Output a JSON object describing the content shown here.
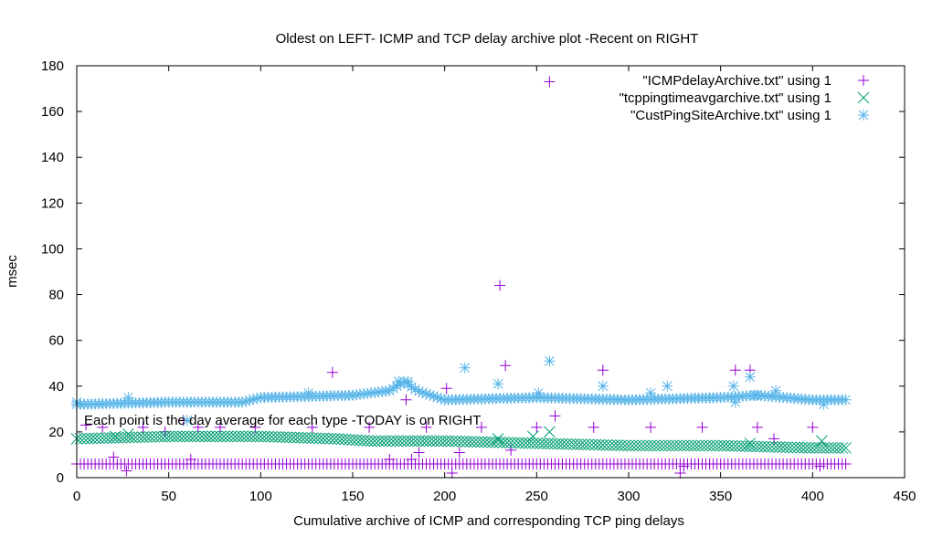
{
  "chart_data": {
    "type": "scatter",
    "title": "Oldest on LEFT- ICMP and TCP delay archive plot -Recent on RIGHT",
    "xlabel": "Cumulative archive of ICMP and corresponding TCP ping delays",
    "ylabel": "msec",
    "xlim": [
      0,
      450
    ],
    "ylim": [
      0,
      180
    ],
    "xticks": [
      0,
      50,
      100,
      150,
      200,
      250,
      300,
      350,
      400,
      450
    ],
    "yticks": [
      0,
      20,
      40,
      60,
      80,
      100,
      120,
      140,
      160,
      180
    ],
    "grid": false,
    "legend_position": "top-right",
    "annotation": "Each point is the day average for each type -TODAY is on RIGHT",
    "series": [
      {
        "name": "\"ICMPdelayArchive.txt\" using 1",
        "color": "#9400d3",
        "marker": "plus",
        "baseline": [
          [
            0,
            6
          ],
          [
            60,
            6
          ],
          [
            120,
            6
          ],
          [
            180,
            6
          ],
          [
            240,
            6
          ],
          [
            300,
            6
          ],
          [
            360,
            6
          ],
          [
            419,
            6
          ]
        ],
        "points": [
          [
            5,
            23
          ],
          [
            14,
            22
          ],
          [
            20,
            9
          ],
          [
            27,
            3
          ],
          [
            36,
            22
          ],
          [
            48,
            20
          ],
          [
            58,
            25
          ],
          [
            62,
            8
          ],
          [
            66,
            22
          ],
          [
            78,
            22
          ],
          [
            97,
            22
          ],
          [
            128,
            22
          ],
          [
            139,
            46
          ],
          [
            159,
            22
          ],
          [
            170,
            8
          ],
          [
            179,
            34
          ],
          [
            182,
            8
          ],
          [
            186,
            11
          ],
          [
            190,
            22
          ],
          [
            201,
            39
          ],
          [
            204,
            2
          ],
          [
            208,
            11
          ],
          [
            220,
            22
          ],
          [
            230,
            84
          ],
          [
            233,
            49
          ],
          [
            236,
            12
          ],
          [
            250,
            22
          ],
          [
            257,
            173
          ],
          [
            260,
            27
          ],
          [
            281,
            22
          ],
          [
            286,
            47
          ],
          [
            312,
            22
          ],
          [
            328,
            2
          ],
          [
            330,
            5
          ],
          [
            340,
            22
          ],
          [
            358,
            47
          ],
          [
            366,
            47
          ],
          [
            370,
            22
          ],
          [
            379,
            17
          ],
          [
            400,
            22
          ],
          [
            404,
            5
          ]
        ]
      },
      {
        "name": "\"tcppingtimeavgarchive.txt\" using 1",
        "color": "#009e73",
        "marker": "x",
        "baseline": [
          [
            0,
            17
          ],
          [
            50,
            18
          ],
          [
            100,
            18
          ],
          [
            140,
            17
          ],
          [
            160,
            16
          ],
          [
            200,
            16
          ],
          [
            250,
            15
          ],
          [
            300,
            14
          ],
          [
            350,
            14
          ],
          [
            400,
            13
          ],
          [
            419,
            13
          ]
        ],
        "points": [
          [
            21,
            18
          ],
          [
            28,
            19
          ],
          [
            229,
            17
          ],
          [
            248,
            18
          ],
          [
            257,
            20
          ],
          [
            366,
            15
          ],
          [
            405,
            16
          ]
        ]
      },
      {
        "name": "\"CustPingSiteArchive.txt\" using 1",
        "color": "#56b4e9",
        "marker": "star",
        "baseline": [
          [
            0,
            32
          ],
          [
            50,
            33
          ],
          [
            90,
            33
          ],
          [
            100,
            35
          ],
          [
            150,
            36
          ],
          [
            170,
            38
          ],
          [
            178,
            42
          ],
          [
            185,
            38
          ],
          [
            200,
            34
          ],
          [
            250,
            35
          ],
          [
            300,
            34
          ],
          [
            350,
            35
          ],
          [
            370,
            36
          ],
          [
            400,
            34
          ],
          [
            419,
            34
          ]
        ],
        "points": [
          [
            0,
            33
          ],
          [
            28,
            35
          ],
          [
            60,
            25
          ],
          [
            126,
            37
          ],
          [
            175,
            42
          ],
          [
            180,
            42
          ],
          [
            211,
            48
          ],
          [
            229,
            41
          ],
          [
            251,
            37
          ],
          [
            257,
            51
          ],
          [
            286,
            40
          ],
          [
            312,
            37
          ],
          [
            321,
            40
          ],
          [
            357,
            40
          ],
          [
            358,
            33
          ],
          [
            366,
            44
          ],
          [
            369,
            36
          ],
          [
            380,
            38
          ],
          [
            406,
            32
          ]
        ]
      }
    ]
  }
}
